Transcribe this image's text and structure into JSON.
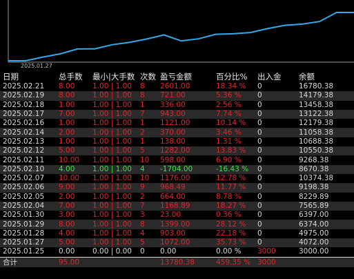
{
  "colors": {
    "positive": "#e3262a",
    "negative": "#3de14a",
    "line": "#35a8ea"
  },
  "chart": {
    "date_label": "2025.01.27",
    "series": [
      3000,
      3000,
      4072,
      4975,
      6374,
      6397,
      7565.89,
      8229.89,
      9198.38,
      10374.38,
      8670.38,
      9268.38,
      10550.38,
      10688.38,
      11058.38,
      12179.38,
      13122.38,
      13458.38,
      14179.38,
      16780.38,
      16780.38
    ]
  },
  "table": {
    "headers": [
      "日期",
      "总手数",
      "最小|大手数",
      "次数",
      "盈亏金额",
      "百分比%",
      "出入金",
      "余额"
    ],
    "rows": [
      {
        "date": "2025.02.21",
        "lots": "8.00",
        "minmax": "1.00 | 1.00",
        "count": "8",
        "pnl": "2601.00",
        "pct": "18.34 %",
        "io": "0",
        "balance": "16780.38",
        "sign": "pos"
      },
      {
        "date": "2025.02.19",
        "lots": "8.00",
        "minmax": "1.00 | 1.00",
        "count": "8",
        "pnl": "721.00",
        "pct": "5.36 %",
        "io": "0",
        "balance": "14179.38",
        "sign": "pos"
      },
      {
        "date": "2025.02.18",
        "lots": "1.00",
        "minmax": "1.00 | 1.00",
        "count": "1",
        "pnl": "336.00",
        "pct": "2.56 %",
        "io": "0",
        "balance": "13458.38",
        "sign": "pos"
      },
      {
        "date": "2025.02.17",
        "lots": "7.00",
        "minmax": "1.00 | 1.00",
        "count": "7",
        "pnl": "943.00",
        "pct": "7.74 %",
        "io": "0",
        "balance": "13122.38",
        "sign": "pos"
      },
      {
        "date": "2025.02.16",
        "lots": "1.00",
        "minmax": "1.00 | 1.00",
        "count": "1",
        "pnl": "1121.00",
        "pct": "10.14 %",
        "io": "0",
        "balance": "12179.38",
        "sign": "pos"
      },
      {
        "date": "2025.02.14",
        "lots": "2.00",
        "minmax": "1.00 | 1.00",
        "count": "2",
        "pnl": "370.00",
        "pct": "3.46 %",
        "io": "0",
        "balance": "11058.38",
        "sign": "pos"
      },
      {
        "date": "2025.02.13",
        "lots": "1.00",
        "minmax": "1.00 | 1.00",
        "count": "1",
        "pnl": "138.00",
        "pct": "1.31 %",
        "io": "0",
        "balance": "10688.38",
        "sign": "pos"
      },
      {
        "date": "2025.02.12",
        "lots": "5.00",
        "minmax": "1.00 | 1.00",
        "count": "5",
        "pnl": "1282.00",
        "pct": "13.83 %",
        "io": "0",
        "balance": "10550.38",
        "sign": "pos"
      },
      {
        "date": "2025.02.11",
        "lots": "10.00",
        "minmax": "1.00 | 1.00",
        "count": "10",
        "pnl": "598.00",
        "pct": "6.90 %",
        "io": "0",
        "balance": "9268.38",
        "sign": "pos"
      },
      {
        "date": "2025.02.10",
        "lots": "4.00",
        "minmax": "1.00 | 1.00",
        "count": "4",
        "pnl": "-1704.00",
        "pct": "-16.43 %",
        "io": "0",
        "balance": "8670.38",
        "sign": "neg"
      },
      {
        "date": "2025.02.07",
        "lots": "10.00",
        "minmax": "1.00 | 1.00",
        "count": "10",
        "pnl": "1176.00",
        "pct": "12.78 %",
        "io": "0",
        "balance": "10374.38",
        "sign": "pos"
      },
      {
        "date": "2025.02.06",
        "lots": "9.00",
        "minmax": "1.00 | 1.00",
        "count": "9",
        "pnl": "968.49",
        "pct": "11.77 %",
        "io": "0",
        "balance": "9198.38",
        "sign": "pos"
      },
      {
        "date": "2025.02.05",
        "lots": "2.00",
        "minmax": "1.00 | 1.00",
        "count": "2",
        "pnl": "664.00",
        "pct": "8.78 %",
        "io": "0",
        "balance": "8229.89",
        "sign": "pos"
      },
      {
        "date": "2025.02.04",
        "lots": "7.00",
        "minmax": "1.00 | 1.00",
        "count": "7",
        "pnl": "1168.89",
        "pct": "18.27 %",
        "io": "0",
        "balance": "7565.89",
        "sign": "pos"
      },
      {
        "date": "2025.01.30",
        "lots": "3.00",
        "minmax": "1.00 | 1.00",
        "count": "3",
        "pnl": "23.00",
        "pct": "0.36 %",
        "io": "0",
        "balance": "6397.00",
        "sign": "pos"
      },
      {
        "date": "2025.01.29",
        "lots": "8.00",
        "minmax": "1.00 | 1.00",
        "count": "8",
        "pnl": "1399.00",
        "pct": "28.12 %",
        "io": "0",
        "balance": "6374.00",
        "sign": "pos"
      },
      {
        "date": "2025.01.28",
        "lots": "4.00",
        "minmax": "1.00 | 1.00",
        "count": "4",
        "pnl": "903.00",
        "pct": "22.18 %",
        "io": "0",
        "balance": "4975.00",
        "sign": "pos"
      },
      {
        "date": "2025.01.27",
        "lots": "5.00",
        "minmax": "1.00 | 1.00",
        "count": "5",
        "pnl": "1072.00",
        "pct": "35.73 %",
        "io": "0",
        "balance": "4072.00",
        "sign": "pos"
      },
      {
        "date": "2025.01.25",
        "lots": "0.00",
        "minmax": "0.00 | 0.00",
        "count": "0",
        "pnl": "0.00",
        "pct": "0.00 %",
        "io": "3000",
        "balance": "3000.00",
        "sign": "zero"
      }
    ],
    "total": {
      "label": "合计",
      "lots": "95.00",
      "pnl": "13780.38",
      "pct": "459.35 %",
      "io": "3000"
    }
  }
}
